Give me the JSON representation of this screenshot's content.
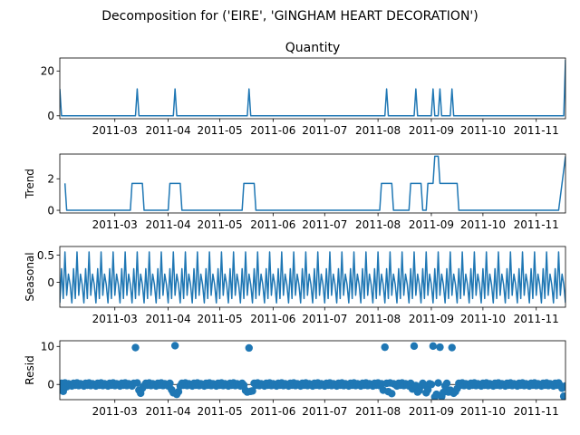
{
  "suptitle": "Decomposition for ('EIRE', 'GINGHAM HEART DECORATION')",
  "chart_data": [
    {
      "type": "line",
      "title": "Quantity",
      "ylabel": "",
      "color": "#1f77b4",
      "xlim": [
        "2011-01-28",
        "2011-11-18"
      ],
      "ylim": [
        -1.3,
        25.8
      ],
      "yticks": [
        0,
        20
      ],
      "xticks": [
        "2011-03",
        "2011-04",
        "2011-05",
        "2011-06",
        "2011-07",
        "2011-08",
        "2011-09",
        "2011-10",
        "2011-11"
      ],
      "points": [
        [
          "2011-01-28",
          12
        ],
        [
          "2011-01-29",
          0
        ],
        [
          "2011-03-13",
          0
        ],
        [
          "2011-03-14",
          12
        ],
        [
          "2011-03-15",
          0
        ],
        [
          "2011-04-04",
          0
        ],
        [
          "2011-04-05",
          12
        ],
        [
          "2011-04-06",
          0
        ],
        [
          "2011-05-17",
          0
        ],
        [
          "2011-05-18",
          12
        ],
        [
          "2011-05-19",
          0
        ],
        [
          "2011-08-05",
          0
        ],
        [
          "2011-08-06",
          12
        ],
        [
          "2011-08-07",
          0
        ],
        [
          "2011-08-22",
          0
        ],
        [
          "2011-08-23",
          12
        ],
        [
          "2011-08-24",
          0
        ],
        [
          "2011-09-01",
          0
        ],
        [
          "2011-09-02",
          12
        ],
        [
          "2011-09-03",
          0
        ],
        [
          "2011-09-05",
          0
        ],
        [
          "2011-09-06",
          12
        ],
        [
          "2011-09-07",
          0
        ],
        [
          "2011-09-12",
          0
        ],
        [
          "2011-09-13",
          12
        ],
        [
          "2011-09-14",
          0
        ],
        [
          "2011-11-17",
          0
        ],
        [
          "2011-11-18",
          25
        ]
      ]
    },
    {
      "type": "line",
      "title": "",
      "ylabel": "Trend",
      "color": "#1f77b4",
      "xlim": [
        "2011-01-28",
        "2011-11-18"
      ],
      "ylim": [
        -0.17,
        3.57
      ],
      "yticks": [
        0,
        2
      ],
      "xticks": [
        "2011-03",
        "2011-04",
        "2011-05",
        "2011-06",
        "2011-07",
        "2011-08",
        "2011-09",
        "2011-10",
        "2011-11"
      ],
      "points": [
        [
          "2011-01-31",
          1.71
        ],
        [
          "2011-02-01",
          0
        ],
        [
          "2011-03-10",
          0
        ],
        [
          "2011-03-11",
          1.71
        ],
        [
          "2011-03-17",
          1.71
        ],
        [
          "2011-03-18",
          0
        ],
        [
          "2011-04-01",
          0
        ],
        [
          "2011-04-02",
          1.71
        ],
        [
          "2011-04-08",
          1.71
        ],
        [
          "2011-04-09",
          0
        ],
        [
          "2011-05-14",
          0
        ],
        [
          "2011-05-15",
          1.71
        ],
        [
          "2011-05-21",
          1.71
        ],
        [
          "2011-05-22",
          0
        ],
        [
          "2011-08-02",
          0
        ],
        [
          "2011-08-03",
          1.71
        ],
        [
          "2011-08-09",
          1.71
        ],
        [
          "2011-08-10",
          0
        ],
        [
          "2011-08-19",
          0
        ],
        [
          "2011-08-20",
          1.71
        ],
        [
          "2011-08-26",
          1.71
        ],
        [
          "2011-08-27",
          0
        ],
        [
          "2011-08-29",
          0
        ],
        [
          "2011-08-30",
          1.71
        ],
        [
          "2011-09-02",
          1.71
        ],
        [
          "2011-09-03",
          3.43
        ],
        [
          "2011-09-05",
          3.43
        ],
        [
          "2011-09-06",
          1.71
        ],
        [
          "2011-09-16",
          1.71
        ],
        [
          "2011-09-17",
          0
        ],
        [
          "2011-11-14",
          0
        ],
        [
          "2011-11-18",
          3.43
        ]
      ]
    },
    {
      "type": "line",
      "title": "",
      "ylabel": "Seasonal",
      "color": "#1f77b4",
      "xlim": [
        "2011-01-28",
        "2011-11-18"
      ],
      "ylim": [
        -0.46,
        0.66
      ],
      "yticks": [
        0.0,
        0.5
      ],
      "xticks": [
        "2011-03",
        "2011-04",
        "2011-05",
        "2011-06",
        "2011-07",
        "2011-08",
        "2011-09",
        "2011-10",
        "2011-11"
      ],
      "start": "2011-01-28",
      "end": "2011-11-18",
      "weekly_pattern": [
        -0.38,
        0.25,
        -0.3,
        0.56,
        -0.24,
        0.15,
        -0.04
      ]
    },
    {
      "type": "scatter",
      "title": "",
      "ylabel": "Resid",
      "color": "#1f77b4",
      "xlim": [
        "2011-01-28",
        "2011-11-18"
      ],
      "ylim": [
        -4.0,
        11.5
      ],
      "yticks": [
        0,
        10
      ],
      "xticks": [
        "2011-03",
        "2011-04",
        "2011-05",
        "2011-06",
        "2011-07",
        "2011-08",
        "2011-09",
        "2011-10",
        "2011-11"
      ],
      "baseline": 0,
      "start": "2011-01-28",
      "end": "2011-11-18",
      "background_pattern": [
        -0.4,
        0.3,
        -0.2,
        0.4,
        -0.3,
        0.2,
        0.0
      ],
      "points": [
        [
          "2011-01-30",
          -1.8
        ],
        [
          "2011-02-01",
          -0.6
        ],
        [
          "2011-03-13",
          9.7
        ],
        [
          "2011-03-15",
          -1.5
        ],
        [
          "2011-03-16",
          -2.3
        ],
        [
          "2011-03-17",
          -1.0
        ],
        [
          "2011-04-03",
          -1.4
        ],
        [
          "2011-04-04",
          -2.2
        ],
        [
          "2011-04-05",
          10.2
        ],
        [
          "2011-04-06",
          -2.6
        ],
        [
          "2011-04-07",
          -1.9
        ],
        [
          "2011-05-16",
          -1.6
        ],
        [
          "2011-05-17",
          -2.0
        ],
        [
          "2011-05-18",
          9.6
        ],
        [
          "2011-05-19",
          -1.8
        ],
        [
          "2011-05-20",
          -1.7
        ],
        [
          "2011-08-05",
          9.8
        ],
        [
          "2011-08-04",
          -1.5
        ],
        [
          "2011-08-07",
          -1.9
        ],
        [
          "2011-08-09",
          -2.4
        ],
        [
          "2011-08-22",
          10.1
        ],
        [
          "2011-08-21",
          -1.2
        ],
        [
          "2011-08-24",
          -2.0
        ],
        [
          "2011-08-25",
          -1.6
        ],
        [
          "2011-08-29",
          -2.2
        ],
        [
          "2011-08-30",
          -1.4
        ],
        [
          "2011-09-02",
          10.1
        ],
        [
          "2011-09-03",
          -3.3
        ],
        [
          "2011-09-04",
          -2.6
        ],
        [
          "2011-09-06",
          9.8
        ],
        [
          "2011-09-07",
          -3.2
        ],
        [
          "2011-09-08",
          -2.1
        ],
        [
          "2011-09-11",
          -2.0
        ],
        [
          "2011-09-12",
          -1.5
        ],
        [
          "2011-09-13",
          9.7
        ],
        [
          "2011-09-14",
          -2.3
        ],
        [
          "2011-09-15",
          -1.9
        ],
        [
          "2011-09-16",
          -1.1
        ],
        [
          "2011-11-16",
          -1.0
        ],
        [
          "2011-11-17",
          -3.1
        ]
      ]
    }
  ]
}
